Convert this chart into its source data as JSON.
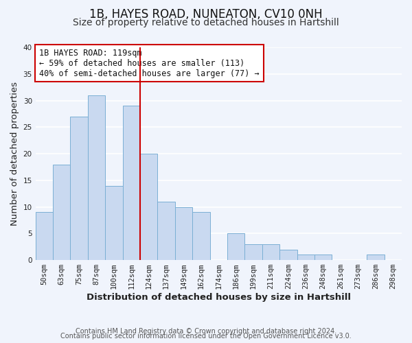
{
  "title": "1B, HAYES ROAD, NUNEATON, CV10 0NH",
  "subtitle": "Size of property relative to detached houses in Hartshill",
  "xlabel": "Distribution of detached houses by size in Hartshill",
  "ylabel": "Number of detached properties",
  "bar_labels": [
    "50sqm",
    "63sqm",
    "75sqm",
    "87sqm",
    "100sqm",
    "112sqm",
    "124sqm",
    "137sqm",
    "149sqm",
    "162sqm",
    "174sqm",
    "186sqm",
    "199sqm",
    "211sqm",
    "224sqm",
    "236sqm",
    "248sqm",
    "261sqm",
    "273sqm",
    "286sqm",
    "298sqm"
  ],
  "bar_values": [
    9,
    18,
    27,
    31,
    14,
    29,
    20,
    11,
    10,
    9,
    0,
    5,
    3,
    3,
    2,
    1,
    1,
    0,
    0,
    1,
    0
  ],
  "bar_color": "#c9d9f0",
  "bar_edge_color": "#7aafd4",
  "vline_color": "#cc0000",
  "ylim": [
    0,
    40
  ],
  "annotation_title": "1B HAYES ROAD: 119sqm",
  "annotation_line1": "← 59% of detached houses are smaller (113)",
  "annotation_line2": "40% of semi-detached houses are larger (77) →",
  "annotation_box_edge": "#cc0000",
  "footer_line1": "Contains HM Land Registry data © Crown copyright and database right 2024.",
  "footer_line2": "Contains public sector information licensed under the Open Government Licence v3.0.",
  "bg_color": "#f0f4fc",
  "plot_bg_color": "#f0f4fc",
  "grid_color": "#ffffff",
  "title_fontsize": 12,
  "subtitle_fontsize": 10,
  "axis_label_fontsize": 9.5,
  "tick_fontsize": 7.5,
  "annotation_fontsize": 8.5,
  "footer_fontsize": 7
}
